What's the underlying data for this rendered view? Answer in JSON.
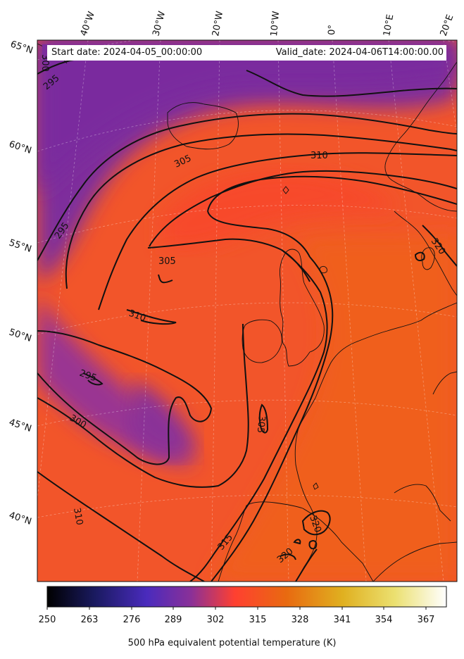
{
  "map": {
    "start_date": "Start date: 2024-04-05_00:00:00",
    "valid_date": "Valid_date: 2024-04-06T14:00:00.00",
    "lon_labels": [
      "40°W",
      "30°W",
      "20°W",
      "10°W",
      "0°",
      "10°E",
      "20°E"
    ],
    "lat_labels": [
      "65°N",
      "60°N",
      "55°N",
      "50°N",
      "45°N",
      "40°N"
    ],
    "contour_levels": [
      "295",
      "300",
      "305",
      "310",
      "315",
      "320"
    ],
    "contour_labels": [
      "300",
      "295",
      "305",
      "310",
      "295",
      "305",
      "310",
      "300",
      "310",
      "305",
      "315",
      "320",
      "320",
      "320"
    ],
    "projection": "lambert-conformal",
    "coastlines": true,
    "gridlines": true
  },
  "colorbar": {
    "label": "500 hPa equivalent potential temperature (K)",
    "ticks": [
      "250",
      "263",
      "276",
      "289",
      "302",
      "315",
      "328",
      "341",
      "354",
      "367"
    ],
    "range": [
      250,
      372
    ],
    "colormap": "CMRmap-like",
    "colors": [
      "#000000",
      "#1a1a60",
      "#4a2bbd",
      "#8a3098",
      "#ff4030",
      "#e86a10",
      "#e0b020",
      "#ebe070",
      "#ffffff"
    ]
  },
  "field_colors": {
    "cold": "#7b2f9c",
    "cool": "#9a3590",
    "warm": "#ff4530",
    "hot": "#f05f1c"
  }
}
